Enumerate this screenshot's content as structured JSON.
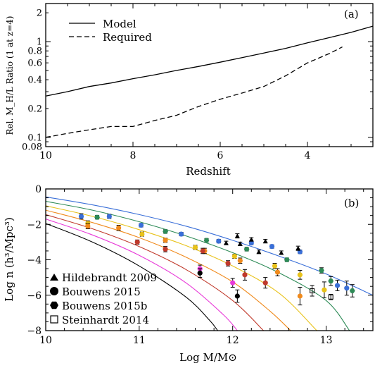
{
  "chart_data": [
    {
      "type": "line",
      "panel_label": "(a)",
      "xlabel": "Redshift",
      "ylabel": "Rel. M_H/L Ratio (1 at z=4)",
      "xlim": [
        10,
        2.5
      ],
      "ylim": [
        0.08,
        2.5
      ],
      "yscale": "log",
      "x_ticks": [
        10,
        8,
        6,
        4
      ],
      "y_ticks": [
        0.08,
        0.1,
        0.2,
        0.4,
        0.6,
        0.8,
        1,
        2
      ],
      "legend": {
        "position": "top-left"
      },
      "series": [
        {
          "name": "Model",
          "style": "solid",
          "x": [
            10,
            9.5,
            9,
            8.5,
            8,
            7.5,
            7,
            6.5,
            6,
            5.5,
            5,
            4.5,
            4,
            3.5,
            3,
            2.5
          ],
          "y": [
            0.27,
            0.3,
            0.34,
            0.37,
            0.41,
            0.45,
            0.5,
            0.55,
            0.61,
            0.68,
            0.76,
            0.85,
            0.97,
            1.1,
            1.25,
            1.45
          ]
        },
        {
          "name": "Required",
          "style": "dashed",
          "x": [
            10,
            9.5,
            9,
            8.5,
            8,
            7.5,
            7,
            6.5,
            6,
            5.5,
            5,
            4.5,
            4,
            3.5,
            3.2
          ],
          "y": [
            0.1,
            0.11,
            0.12,
            0.13,
            0.13,
            0.15,
            0.17,
            0.21,
            0.25,
            0.29,
            0.34,
            0.44,
            0.6,
            0.75,
            0.88
          ]
        }
      ]
    },
    {
      "type": "scatter",
      "panel_label": "(b)",
      "xlabel": "Log M/M⊙",
      "ylabel": "Log n (h³/Mpc³)",
      "xlim": [
        10,
        13.5
      ],
      "ylim": [
        -8,
        0
      ],
      "x_ticks": [
        10,
        11,
        12,
        13
      ],
      "y_ticks": [
        0,
        -2,
        -4,
        -6,
        -8
      ],
      "legend": {
        "position": "bottom-left"
      },
      "legend_entries": [
        {
          "marker": "triangle",
          "label": "Hildebrandt 2009"
        },
        {
          "marker": "circle",
          "label": "Bouwens 2015"
        },
        {
          "marker": "hexagon",
          "label": "Bouwens 2015b"
        },
        {
          "marker": "square-open",
          "label": "Steinhardt 2014"
        }
      ],
      "curves": [
        {
          "color": "#3a6fd8",
          "x": [
            10,
            10.5,
            11,
            11.5,
            12,
            12.5,
            13,
            13.5
          ],
          "y": [
            -0.45,
            -0.9,
            -1.45,
            -2.1,
            -2.9,
            -3.8,
            -4.8,
            -6.0
          ]
        },
        {
          "color": "#2e8b57",
          "x": [
            10,
            10.5,
            11,
            11.5,
            12,
            12.5,
            13,
            13.25
          ],
          "y": [
            -0.7,
            -1.2,
            -1.85,
            -2.65,
            -3.6,
            -4.75,
            -6.3,
            -8.0
          ]
        },
        {
          "color": "#e8c21a",
          "x": [
            10,
            10.5,
            11,
            11.5,
            12,
            12.5,
            12.9
          ],
          "y": [
            -0.95,
            -1.55,
            -2.3,
            -3.2,
            -4.35,
            -5.9,
            -8.0
          ]
        },
        {
          "color": "#f08a1c",
          "x": [
            10,
            10.5,
            11,
            11.5,
            12,
            12.4,
            12.62
          ],
          "y": [
            -1.2,
            -1.9,
            -2.75,
            -3.85,
            -5.25,
            -6.9,
            -8.0
          ]
        },
        {
          "color": "#c0392b",
          "x": [
            10,
            10.5,
            11,
            11.5,
            12,
            12.33
          ],
          "y": [
            -1.45,
            -2.25,
            -3.25,
            -4.55,
            -6.3,
            -8.0
          ]
        },
        {
          "color": "#e83ad8",
          "x": [
            10,
            10.5,
            11,
            11.5,
            11.9,
            12.05
          ],
          "y": [
            -1.7,
            -2.6,
            -3.75,
            -5.3,
            -7.1,
            -8.0
          ]
        },
        {
          "color": "#000000",
          "x": [
            10,
            10.5,
            11,
            11.5,
            11.75,
            11.84
          ],
          "y": [
            -1.95,
            -3.0,
            -4.35,
            -6.1,
            -7.4,
            -8.0
          ]
        }
      ],
      "points": [
        {
          "marker": "circle",
          "color": "#3a6fd8",
          "x": 10.38,
          "y": -1.55,
          "err": 0.15
        },
        {
          "marker": "circle",
          "color": "#3a6fd8",
          "x": 10.68,
          "y": -1.55,
          "err": 0.12
        },
        {
          "marker": "circle",
          "color": "#3a6fd8",
          "x": 11.02,
          "y": -2.05,
          "err": 0.1
        },
        {
          "marker": "circle",
          "color": "#3a6fd8",
          "x": 11.45,
          "y": -2.55,
          "err": 0.1
        },
        {
          "marker": "circle",
          "color": "#3a6fd8",
          "x": 11.85,
          "y": -2.95,
          "err": 0.1
        },
        {
          "marker": "circle",
          "color": "#3a6fd8",
          "x": 12.2,
          "y": -3.05,
          "err": 0.1
        },
        {
          "marker": "circle",
          "color": "#3a6fd8",
          "x": 12.42,
          "y": -3.25,
          "err": 0.1
        },
        {
          "marker": "circle",
          "color": "#3a6fd8",
          "x": 12.72,
          "y": -3.55,
          "err": 0.1
        },
        {
          "marker": "circle",
          "color": "#3a6fd8",
          "x": 13.12,
          "y": -5.45,
          "err": 0.3
        },
        {
          "marker": "circle",
          "color": "#3a6fd8",
          "x": 13.22,
          "y": -5.6,
          "err": 0.4
        },
        {
          "marker": "hexagon",
          "color": "#2e8b57",
          "x": 10.55,
          "y": -1.6,
          "err": 0.1
        },
        {
          "marker": "hexagon",
          "color": "#2e8b57",
          "x": 11.28,
          "y": -2.4,
          "err": 0.1
        },
        {
          "marker": "hexagon",
          "color": "#2e8b57",
          "x": 11.72,
          "y": -2.9,
          "err": 0.1
        },
        {
          "marker": "hexagon",
          "color": "#2e8b57",
          "x": 12.15,
          "y": -3.4,
          "err": 0.1
        },
        {
          "marker": "hexagon",
          "color": "#2e8b57",
          "x": 12.58,
          "y": -4.0,
          "err": 0.1
        },
        {
          "marker": "hexagon",
          "color": "#2e8b57",
          "x": 12.95,
          "y": -4.6,
          "err": 0.15
        },
        {
          "marker": "hexagon",
          "color": "#2e8b57",
          "x": 13.05,
          "y": -5.2,
          "err": 0.25
        },
        {
          "marker": "hexagon",
          "color": "#2e8b57",
          "x": 13.28,
          "y": -5.75,
          "err": 0.35
        },
        {
          "marker": "circle",
          "color": "#e8c21a",
          "x": 10.45,
          "y": -1.95,
          "err": 0.15
        },
        {
          "marker": "circle",
          "color": "#e8c21a",
          "x": 11.03,
          "y": -2.55,
          "err": 0.12
        },
        {
          "marker": "circle",
          "color": "#e8c21a",
          "x": 11.6,
          "y": -3.3,
          "err": 0.12
        },
        {
          "marker": "circle",
          "color": "#e8c21a",
          "x": 12.02,
          "y": -3.8,
          "err": 0.12
        },
        {
          "marker": "circle",
          "color": "#e8c21a",
          "x": 12.45,
          "y": -4.35,
          "err": 0.15
        },
        {
          "marker": "circle",
          "color": "#e8c21a",
          "x": 12.72,
          "y": -4.85,
          "err": 0.25
        },
        {
          "marker": "circle",
          "color": "#e8c21a",
          "x": 12.98,
          "y": -5.7,
          "err": 0.45
        },
        {
          "marker": "circle",
          "color": "#f08a1c",
          "x": 10.45,
          "y": -2.1,
          "err": 0.15
        },
        {
          "marker": "circle",
          "color": "#f08a1c",
          "x": 10.78,
          "y": -2.2,
          "err": 0.15
        },
        {
          "marker": "circle",
          "color": "#f08a1c",
          "x": 11.28,
          "y": -2.9,
          "err": 0.12
        },
        {
          "marker": "circle",
          "color": "#f08a1c",
          "x": 11.7,
          "y": -3.5,
          "err": 0.15
        },
        {
          "marker": "circle",
          "color": "#f08a1c",
          "x": 12.08,
          "y": -4.05,
          "err": 0.15
        },
        {
          "marker": "circle",
          "color": "#f08a1c",
          "x": 12.48,
          "y": -4.7,
          "err": 0.2
        },
        {
          "marker": "circle",
          "color": "#f08a1c",
          "x": 12.72,
          "y": -6.05,
          "err": 0.5
        },
        {
          "marker": "circle",
          "color": "#c0392b",
          "x": 10.98,
          "y": -3.0,
          "err": 0.12
        },
        {
          "marker": "circle",
          "color": "#c0392b",
          "x": 11.28,
          "y": -3.4,
          "err": 0.15
        },
        {
          "marker": "circle",
          "color": "#c0392b",
          "x": 11.68,
          "y": -3.5,
          "err": 0.15
        },
        {
          "marker": "circle",
          "color": "#c0392b",
          "x": 11.95,
          "y": -4.2,
          "err": 0.15
        },
        {
          "marker": "circle",
          "color": "#c0392b",
          "x": 12.13,
          "y": -4.85,
          "err": 0.3
        },
        {
          "marker": "circle",
          "color": "#c0392b",
          "x": 12.35,
          "y": -5.3,
          "err": 0.3
        },
        {
          "marker": "circle",
          "color": "#e83ad8",
          "x": 11.65,
          "y": -4.5,
          "err": 0.2
        },
        {
          "marker": "circle",
          "color": "#e83ad8",
          "x": 12.0,
          "y": -5.3,
          "err": 0.25
        },
        {
          "marker": "circle",
          "color": "#000000",
          "x": 11.65,
          "y": -4.75,
          "err": 0.25
        },
        {
          "marker": "circle",
          "color": "#000000",
          "x": 12.05,
          "y": -6.05,
          "err": 0.35
        },
        {
          "marker": "triangle",
          "color": "#000000",
          "x": 12.05,
          "y": -2.65,
          "err": 0.12
        },
        {
          "marker": "triangle",
          "color": "#000000",
          "x": 12.2,
          "y": -2.85,
          "err": 0.1
        },
        {
          "marker": "triangle",
          "color": "#000000",
          "x": 12.35,
          "y": -2.95,
          "err": 0.1
        },
        {
          "marker": "triangle",
          "color": "#000000",
          "x": 12.7,
          "y": -3.35,
          "err": 0.12
        },
        {
          "marker": "triangle",
          "color": "#000000",
          "x": 11.93,
          "y": -3.05,
          "err": 0.1
        },
        {
          "marker": "triangle",
          "color": "#000000",
          "x": 12.08,
          "y": -3.1,
          "err": 0.1
        },
        {
          "marker": "triangle",
          "color": "#000000",
          "x": 12.28,
          "y": -3.55,
          "err": 0.1
        },
        {
          "marker": "triangle",
          "color": "#000000",
          "x": 12.52,
          "y": -3.6,
          "err": 0.1
        },
        {
          "marker": "square-open",
          "color": "#000000",
          "x": 12.85,
          "y": -5.75,
          "err": 0.3
        },
        {
          "marker": "square-open",
          "color": "#000000",
          "x": 13.05,
          "y": -6.1,
          "err": 0.15
        }
      ]
    }
  ]
}
